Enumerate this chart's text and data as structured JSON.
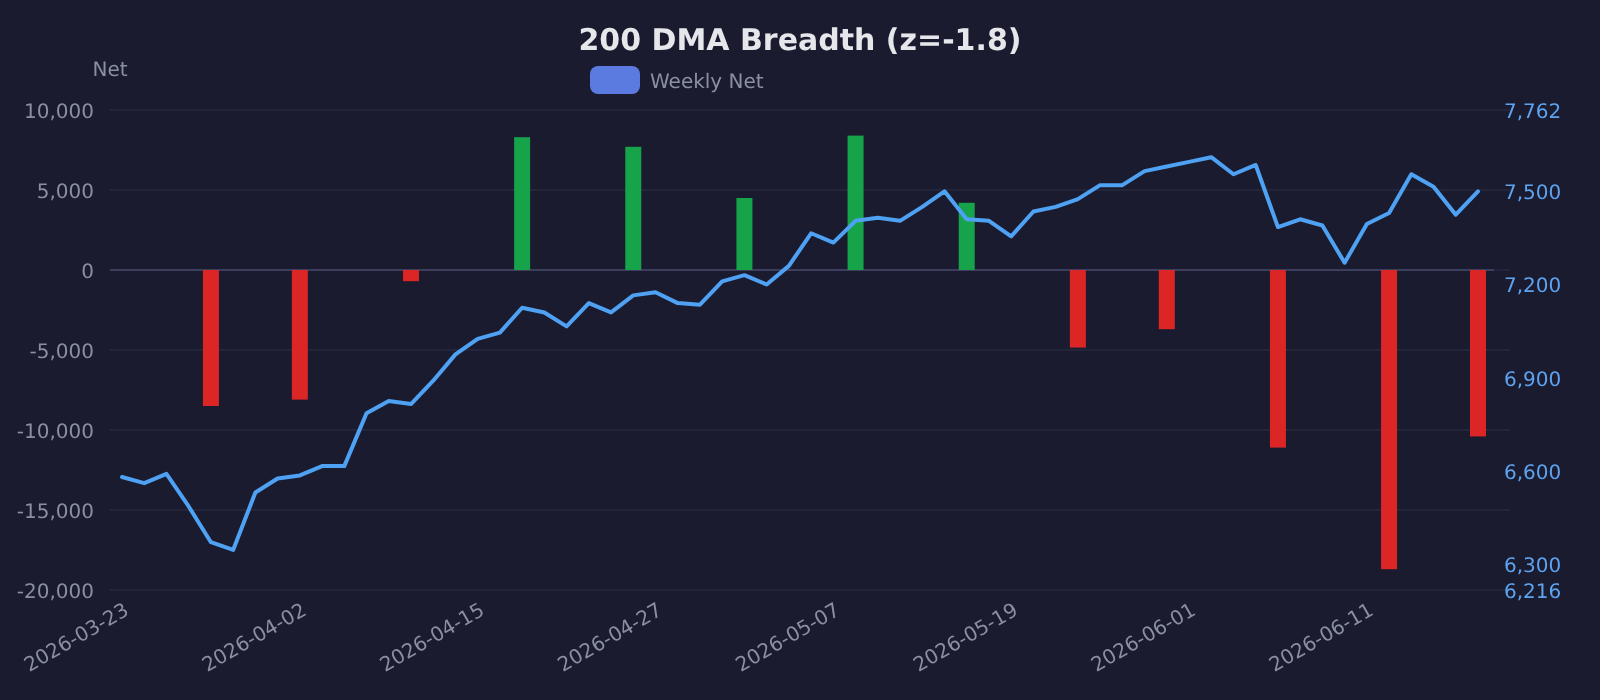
{
  "chart_data": {
    "type": "bar",
    "title": "200 DMA Breadth (z=-1.8)",
    "ylabel": "Net",
    "categories": [
      "2026-03-23",
      null,
      null,
      null,
      null,
      null,
      null,
      null,
      "2026-04-02",
      null,
      null,
      null,
      null,
      null,
      null,
      null,
      "2026-04-15",
      null,
      null,
      null,
      null,
      null,
      null,
      null,
      "2026-04-27",
      null,
      null,
      null,
      null,
      null,
      null,
      null,
      "2026-05-07",
      null,
      null,
      null,
      null,
      null,
      null,
      null,
      "2026-05-19",
      null,
      null,
      null,
      null,
      null,
      null,
      null,
      "2026-06-01",
      null,
      null,
      null,
      null,
      null,
      null,
      null,
      "2026-06-11",
      null,
      null,
      null,
      null,
      null
    ],
    "series": [
      {
        "name": "Weekly Net",
        "color": "#5b7be0",
        "values": [
          null,
          null,
          null,
          null,
          -8500,
          null,
          null,
          null,
          -8100,
          null,
          null,
          null,
          null,
          -700,
          null,
          null,
          null,
          null,
          8300,
          null,
          null,
          null,
          null,
          7700,
          null,
          null,
          null,
          null,
          4500,
          null,
          null,
          null,
          null,
          8400,
          null,
          null,
          null,
          null,
          4200,
          null,
          null,
          null,
          null,
          -4850,
          null,
          null,
          null,
          -3700,
          null,
          null,
          null,
          null,
          -11100,
          null,
          null,
          null,
          null,
          -18700,
          null,
          null,
          null,
          -10400
        ],
        "colors": [
          null,
          null,
          null,
          null,
          "#dc2626",
          null,
          null,
          null,
          "#dc2626",
          null,
          null,
          null,
          null,
          "#dc2626",
          null,
          null,
          null,
          null,
          "#16a34a",
          null,
          null,
          null,
          null,
          "#16a34a",
          null,
          null,
          null,
          null,
          "#16a34a",
          null,
          null,
          null,
          null,
          "#16a34a",
          null,
          null,
          null,
          null,
          "#16a34a",
          null,
          null,
          null,
          null,
          "#dc2626",
          null,
          null,
          null,
          "#dc2626",
          null,
          null,
          null,
          null,
          "#dc2626",
          null,
          null,
          null,
          null,
          "#dc2626",
          null,
          null,
          null,
          "#dc2626"
        ]
      },
      {
        "type": "line",
        "axis": "y2",
        "color": "#4ea1f3",
        "values": [
          6580,
          6560,
          6590,
          6485,
          6370,
          6345,
          6530,
          6575,
          6585,
          6615,
          6615,
          6785,
          6825,
          6815,
          6890,
          6975,
          7025,
          7045,
          7125,
          7110,
          7065,
          7140,
          7110,
          7165,
          7175,
          7140,
          7135,
          7210,
          7230,
          7200,
          7260,
          7365,
          7335,
          7405,
          7415,
          7405,
          7450,
          7500,
          7410,
          7405,
          7355,
          7435,
          7450,
          7475,
          7520,
          7520,
          7565,
          7580,
          7595,
          7610,
          7555,
          7585,
          7385,
          7410,
          7390,
          7270,
          7395,
          7430,
          7555,
          7515,
          7425,
          7500
        ]
      }
    ],
    "ylim": [
      -20000,
      10000
    ],
    "yticks": [
      {
        "value": -20000,
        "label": "-20,000"
      },
      {
        "value": -15000,
        "label": "-15,000"
      },
      {
        "value": -10000,
        "label": "-10,000"
      },
      {
        "value": -5000,
        "label": "-5,000"
      },
      0,
      {
        "value": 5000,
        "label": "5,000"
      },
      {
        "value": 10000,
        "label": "10,000"
      }
    ],
    "y2lim": [
      6216,
      7762
    ],
    "y2ticks": [
      {
        "value": 6216,
        "label": "6,216"
      },
      {
        "value": 6300,
        "label": "6,300"
      },
      {
        "value": 6600,
        "label": "6,600"
      },
      {
        "value": 6900,
        "label": "6,900"
      },
      {
        "value": 7200,
        "label": "7,200"
      },
      {
        "value": 7500,
        "label": "7,500"
      },
      {
        "value": 7762,
        "label": "7,762"
      }
    ],
    "grid": "y",
    "legend": "top",
    "marker": "none",
    "line_style": "solid"
  }
}
